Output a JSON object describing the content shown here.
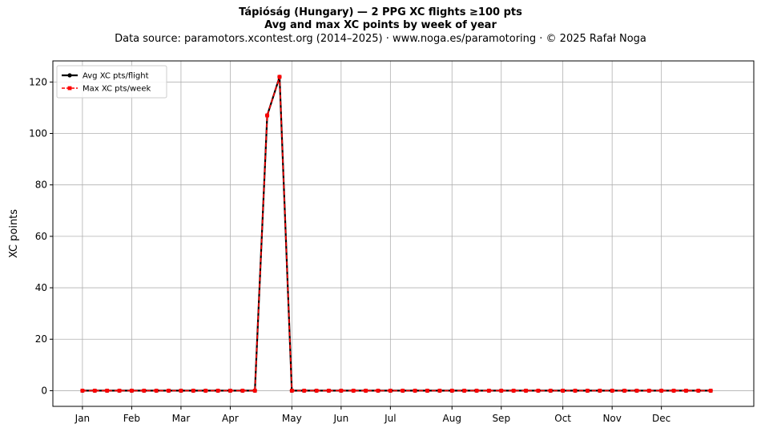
{
  "chart_data": {
    "type": "line",
    "title": "Tápióság (Hungary)  —  2 PPG XC flights ≥100 pts",
    "subtitle": "Avg and max XC points by week of year",
    "source_note": "Data source: paramotors.xcontest.org (2014–2025)  ·  www.noga.es/paramotoring  ·  © 2025 Rafał Noga",
    "xlabel": "",
    "ylabel": "XC points",
    "x": [
      1,
      2,
      3,
      4,
      5,
      6,
      7,
      8,
      9,
      10,
      11,
      12,
      13,
      14,
      15,
      16,
      17,
      18,
      19,
      20,
      21,
      22,
      23,
      24,
      25,
      26,
      27,
      28,
      29,
      30,
      31,
      32,
      33,
      34,
      35,
      36,
      37,
      38,
      39,
      40,
      41,
      42,
      43,
      44,
      45,
      46,
      47,
      48,
      49,
      50,
      51,
      52
    ],
    "x_ticks": [
      {
        "week": 1,
        "label": "Jan"
      },
      {
        "week": 5,
        "label": "Feb"
      },
      {
        "week": 9,
        "label": "Mar"
      },
      {
        "week": 13,
        "label": "Apr"
      },
      {
        "week": 18,
        "label": "May"
      },
      {
        "week": 22,
        "label": "Jun"
      },
      {
        "week": 26,
        "label": "Jul"
      },
      {
        "week": 31,
        "label": "Aug"
      },
      {
        "week": 35,
        "label": "Sep"
      },
      {
        "week": 40,
        "label": "Oct"
      },
      {
        "week": 44,
        "label": "Nov"
      },
      {
        "week": 48,
        "label": "Dec"
      }
    ],
    "y_ticks": [
      0,
      20,
      40,
      60,
      80,
      100,
      120
    ],
    "xlim": [
      -1.4,
      55.5
    ],
    "ylim": [
      -6.1,
      128.2
    ],
    "grid": true,
    "legend_position": "top-left",
    "series": [
      {
        "name": "Avg XC pts/flight",
        "color": "#000000",
        "style": "solid",
        "marker": "circle",
        "values": [
          0,
          0,
          0,
          0,
          0,
          0,
          0,
          0,
          0,
          0,
          0,
          0,
          0,
          0,
          0,
          107,
          122,
          0,
          0,
          0,
          0,
          0,
          0,
          0,
          0,
          0,
          0,
          0,
          0,
          0,
          0,
          0,
          0,
          0,
          0,
          0,
          0,
          0,
          0,
          0,
          0,
          0,
          0,
          0,
          0,
          0,
          0,
          0,
          0,
          0,
          0,
          0
        ]
      },
      {
        "name": "Max XC pts/week",
        "color": "#ff0000",
        "style": "dashed",
        "marker": "square",
        "values": [
          0,
          0,
          0,
          0,
          0,
          0,
          0,
          0,
          0,
          0,
          0,
          0,
          0,
          0,
          0,
          107,
          122,
          0,
          0,
          0,
          0,
          0,
          0,
          0,
          0,
          0,
          0,
          0,
          0,
          0,
          0,
          0,
          0,
          0,
          0,
          0,
          0,
          0,
          0,
          0,
          0,
          0,
          0,
          0,
          0,
          0,
          0,
          0,
          0,
          0,
          0,
          0
        ]
      }
    ]
  }
}
